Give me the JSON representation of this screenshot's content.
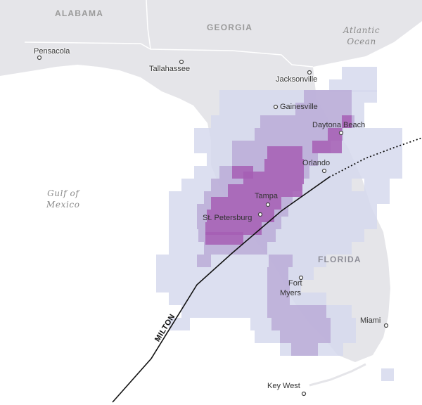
{
  "labels": {
    "states": {
      "alabama": "ALABAMA",
      "georgia": "GEORGIA",
      "florida": "FLORIDA"
    },
    "water": {
      "atlantic_line1": "Atlantic",
      "atlantic_line2": "Ocean",
      "gulf_line1": "Gulf of",
      "gulf_line2": "Mexico"
    },
    "cities": {
      "pensacola": "Pensacola",
      "tallahassee": "Tallahassee",
      "jacksonville": "Jacksonville",
      "gainesville": "Gainesville",
      "daytona": "Daytona Beach",
      "orlando": "Orlando",
      "tampa": "Tampa",
      "stpete": "St. Petersburg",
      "fortmyers_line1": "Fort",
      "fortmyers_line2": "Myers",
      "miami": "Miami",
      "keywest": "Key West"
    },
    "storm_name": "MILTON"
  },
  "colors": {
    "land": "#e5e5e9",
    "water": "#ffffff",
    "light_cell": "#d6d9ed",
    "mid_cell": "#b9a9d6",
    "dark_cell": "#a65eb4",
    "track": "#111111"
  }
}
